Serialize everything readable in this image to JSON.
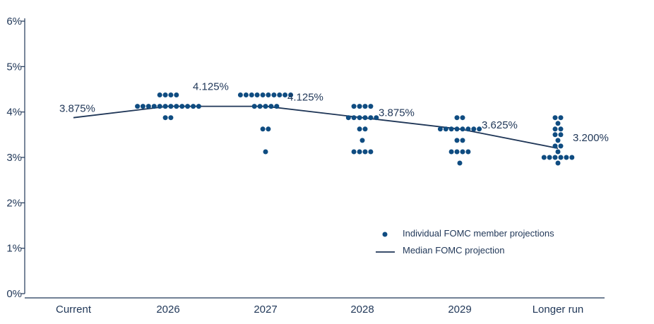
{
  "chart_data": {
    "type": "scatter",
    "categories": [
      "Current",
      "2026",
      "2027",
      "2028",
      "2029",
      "Longer run"
    ],
    "y_ticks": [
      "0%",
      "1%",
      "2%",
      "3%",
      "4%",
      "5%",
      "6%"
    ],
    "ylim": [
      0,
      6
    ],
    "grid": false,
    "legend_position": "bottom-right",
    "series": [
      {
        "name": "Individual FOMC member projections",
        "style": "dots",
        "points": [
          {
            "category": "2026",
            "y": 4.375,
            "count": 4
          },
          {
            "category": "2026",
            "y": 4.125,
            "count": 12
          },
          {
            "category": "2026",
            "y": 3.875,
            "count": 2
          },
          {
            "category": "2027",
            "y": 4.375,
            "count": 10
          },
          {
            "category": "2027",
            "y": 4.125,
            "count": 5
          },
          {
            "category": "2027",
            "y": 3.625,
            "count": 2
          },
          {
            "category": "2027",
            "y": 3.125,
            "count": 1
          },
          {
            "category": "2028",
            "y": 4.125,
            "count": 4
          },
          {
            "category": "2028",
            "y": 3.875,
            "count": 6
          },
          {
            "category": "2028",
            "y": 3.625,
            "count": 2
          },
          {
            "category": "2028",
            "y": 3.375,
            "count": 1
          },
          {
            "category": "2028",
            "y": 3.125,
            "count": 4
          },
          {
            "category": "2029",
            "y": 3.875,
            "count": 2
          },
          {
            "category": "2029",
            "y": 3.625,
            "count": 8
          },
          {
            "category": "2029",
            "y": 3.375,
            "count": 2
          },
          {
            "category": "2029",
            "y": 3.125,
            "count": 4
          },
          {
            "category": "2029",
            "y": 2.875,
            "count": 1
          },
          {
            "category": "Longer run",
            "y": 3.875,
            "count": 2
          },
          {
            "category": "Longer run",
            "y": 3.75,
            "count": 1
          },
          {
            "category": "Longer run",
            "y": 3.625,
            "count": 2
          },
          {
            "category": "Longer run",
            "y": 3.5,
            "count": 2
          },
          {
            "category": "Longer run",
            "y": 3.375,
            "count": 1
          },
          {
            "category": "Longer run",
            "y": 3.25,
            "count": 2
          },
          {
            "category": "Longer run",
            "y": 3.125,
            "count": 1
          },
          {
            "category": "Longer run",
            "y": 3.0,
            "count": 6
          },
          {
            "category": "Longer run",
            "y": 2.875,
            "count": 1
          }
        ]
      },
      {
        "name": "Median FOMC projection",
        "style": "line",
        "values": [
          3.875,
          4.125,
          4.125,
          3.875,
          3.625,
          3.2
        ],
        "labels": [
          "3.875%",
          "4.125%",
          "4.125%",
          "3.875%",
          "3.625%",
          "3.200%"
        ]
      }
    ]
  },
  "colors": {
    "dot": "#0f4c81",
    "line": "#1f3657",
    "axis": "#1f3657",
    "text": "#1f3657"
  }
}
